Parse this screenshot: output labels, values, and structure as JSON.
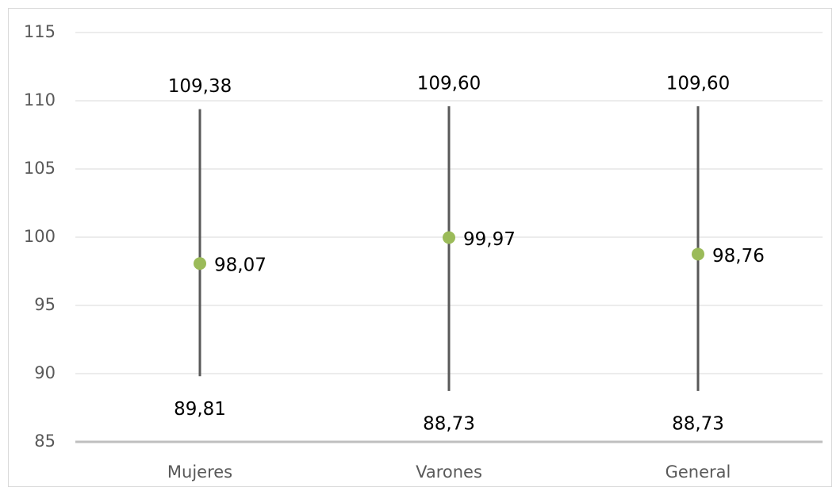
{
  "chart_data": {
    "type": "hilo",
    "categories": [
      "Mujeres",
      "Varones",
      "General"
    ],
    "values": [
      98.07,
      99.97,
      98.76
    ],
    "value_labels": [
      "98,07",
      "99,97",
      "98,76"
    ],
    "high": [
      109.38,
      109.6,
      109.6
    ],
    "high_labels": [
      "109,38",
      "109,60",
      "109,60"
    ],
    "low": [
      89.81,
      88.73,
      88.73
    ],
    "low_labels": [
      "89,81",
      "88,73",
      "88,73"
    ],
    "color": "#9bbb59",
    "line_color": "#595959",
    "ylim": [
      85,
      115
    ],
    "yticks": [
      85,
      90,
      95,
      100,
      105,
      110,
      115
    ],
    "grid": true
  }
}
